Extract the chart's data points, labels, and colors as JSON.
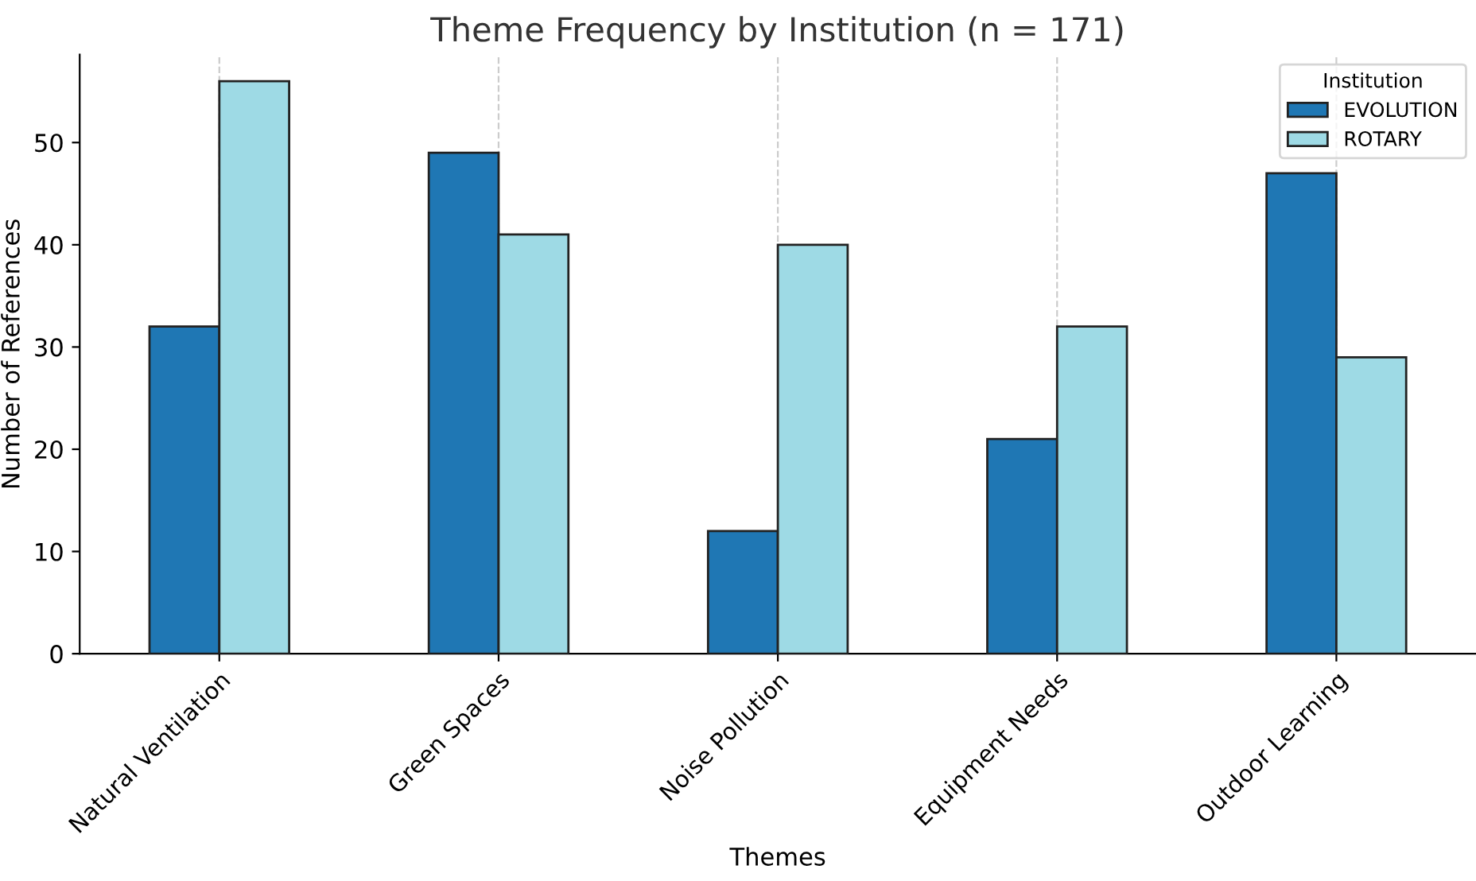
{
  "chart_data": {
    "type": "bar",
    "title": "Theme Frequency by Institution (n = 171)",
    "xlabel": "Themes",
    "ylabel": "Number of References",
    "categories": [
      "Natural Ventilation",
      "Green Spaces",
      "Noise Pollution",
      "Equipment Needs",
      "Outdoor Learning"
    ],
    "series": [
      {
        "name": "EVOLUTION",
        "color": "#1f77b4",
        "values": [
          32,
          49,
          12,
          21,
          47
        ]
      },
      {
        "name": "ROTARY",
        "color": "#9edae5",
        "values": [
          56,
          41,
          40,
          32,
          29
        ]
      }
    ],
    "ylim": [
      0,
      58.6
    ],
    "yticks": [
      0,
      10,
      20,
      30,
      40,
      50
    ],
    "grid": "x",
    "legend": "top right",
    "legend_title": "Institution"
  }
}
